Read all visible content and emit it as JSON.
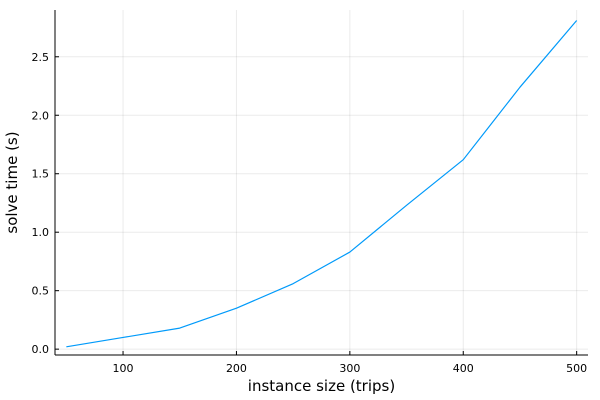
{
  "chart_data": {
    "type": "line",
    "title": "",
    "xlabel": "instance size (trips)",
    "ylabel": "solve time (s)",
    "xlim": [
      40,
      510
    ],
    "ylim": [
      -0.05,
      2.9
    ],
    "xticks": [
      100,
      200,
      300,
      400,
      500
    ],
    "xtick_labels": [
      "100",
      "200",
      "300",
      "400",
      "500"
    ],
    "yticks": [
      0.0,
      0.5,
      1.0,
      1.5,
      2.0,
      2.5
    ],
    "ytick_labels": [
      "0.0",
      "0.5",
      "1.0",
      "1.5",
      "2.0",
      "2.5"
    ],
    "grid": true,
    "legend": "none",
    "series": [
      {
        "color": "#009AFA",
        "x": [
          50,
          100,
          150,
          200,
          250,
          300,
          350,
          400,
          450,
          500
        ],
        "y": [
          0.02,
          0.1,
          0.18,
          0.35,
          0.56,
          0.83,
          1.23,
          1.62,
          2.24,
          2.81
        ]
      }
    ]
  }
}
